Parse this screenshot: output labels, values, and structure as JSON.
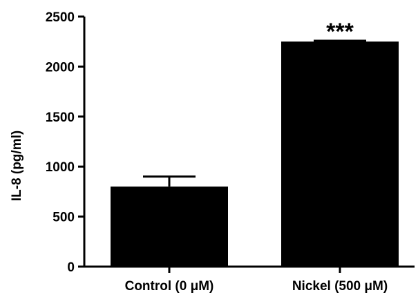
{
  "chart_data": {
    "type": "bar",
    "categories": [
      "Control (0 μM)",
      "Nickel (500 μM)"
    ],
    "values": [
      800,
      2250
    ],
    "errors": [
      100,
      8
    ],
    "ylabel": "IL-8 (pg/ml)",
    "xlabel": "",
    "ylim": [
      0,
      2500
    ],
    "yticks": [
      0,
      500,
      1000,
      1500,
      2000,
      2500
    ],
    "annotations": [
      "",
      "***"
    ],
    "grid": false,
    "legend": "none",
    "bar_color": "#000000"
  }
}
